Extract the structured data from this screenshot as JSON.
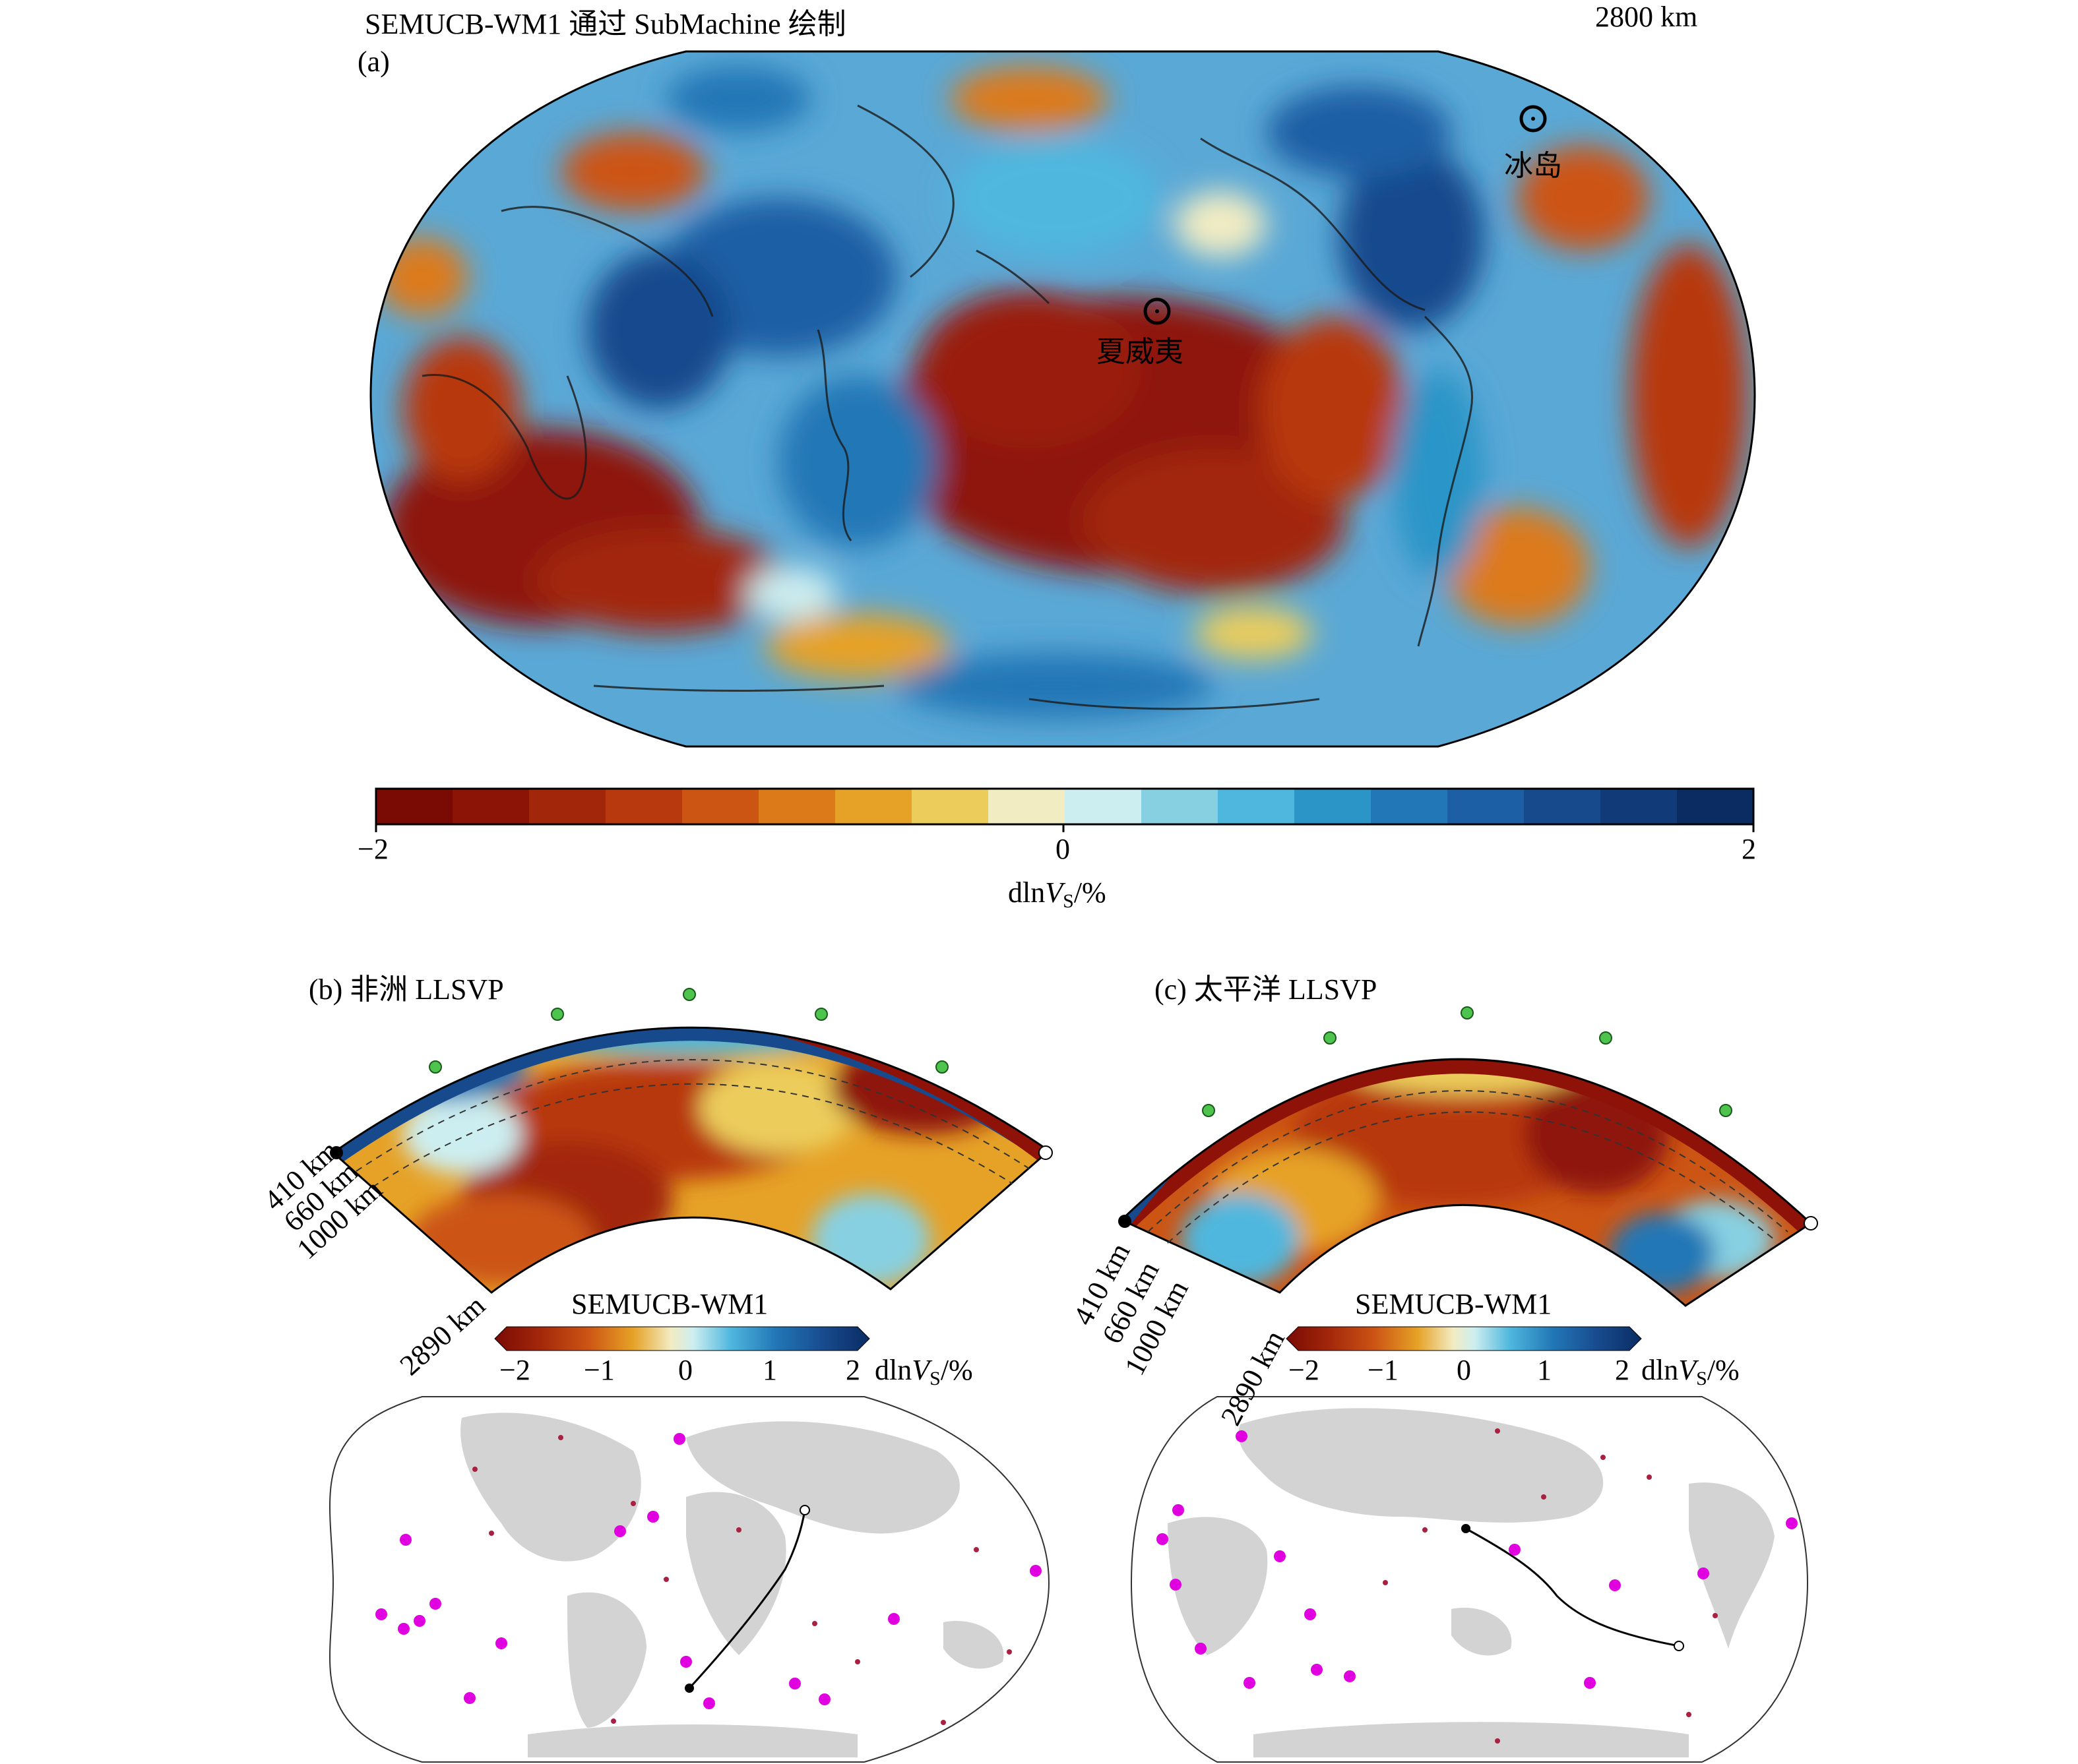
{
  "panel_a": {
    "title": "SEMUCB-WM1 通过 SubMachine 绘制",
    "depth": "2800 km",
    "label": "(a)",
    "hotspots": [
      {
        "name": "冰岛"
      },
      {
        "name": "夏威夷"
      }
    ],
    "colorbar": {
      "min_label": "−2",
      "mid_label": "0",
      "max_label": "2",
      "title_prefix": "dln",
      "title_var": "V",
      "title_sub": "S",
      "title_suffix": "/%",
      "range": [
        -2,
        2
      ],
      "colors": [
        "#7a0a04",
        "#8c1406",
        "#a2270a",
        "#b8390d",
        "#cc5514",
        "#dc7a1a",
        "#e6a227",
        "#eccd5c",
        "#f2ecc2",
        "#cdeef0",
        "#87d0e2",
        "#4fb7de",
        "#2c95c8",
        "#2277b6",
        "#1c5fa4",
        "#174a8d",
        "#113a78",
        "#0a2c63"
      ]
    }
  },
  "panel_b": {
    "label": "(b) 非洲 LLSVP",
    "model": "SEMUCB-WM1",
    "depths": [
      "410 km",
      "660 km",
      "1000 km",
      "2890 km"
    ],
    "colorbar_ticks": [
      "−2",
      "−1",
      "0",
      "1",
      "2"
    ],
    "colorbar_unit_prefix": "dln",
    "colorbar_unit_var": "V",
    "colorbar_unit_sub": "S",
    "colorbar_unit_suffix": "/%"
  },
  "panel_c": {
    "label": "(c) 太平洋 LLSVP",
    "model": "SEMUCB-WM1",
    "depths": [
      "410 km",
      "660 km",
      "1000 km",
      "2890 km"
    ],
    "colorbar_ticks": [
      "−2",
      "−1",
      "0",
      "1",
      "2"
    ],
    "colorbar_unit_prefix": "dln",
    "colorbar_unit_var": "V",
    "colorbar_unit_sub": "S",
    "colorbar_unit_suffix": "/%"
  }
}
